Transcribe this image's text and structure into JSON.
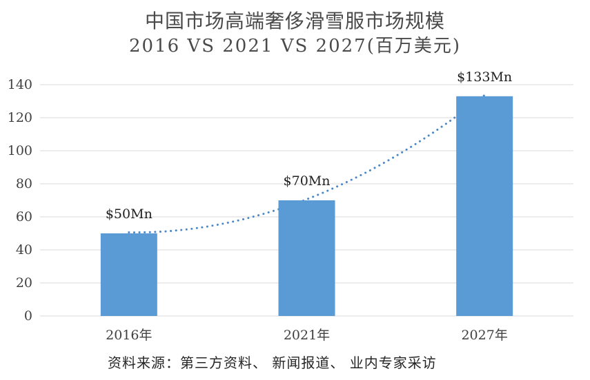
{
  "title": {
    "line1": "中国市场高端奢侈滑雪服市场规模",
    "line2": "2016 VS 2021 VS 2027(百万美元)"
  },
  "source_note": "资料来源：第三方资料、 新闻报道、 业内专家采访",
  "chart_data": {
    "type": "bar",
    "title": "中国市场高端奢侈滑雪服市场规模 2016 VS 2021 VS 2027(百万美元)",
    "categories": [
      "2016年",
      "2021年",
      "2027年"
    ],
    "values": [
      50,
      70,
      133
    ],
    "data_labels": [
      "$50Mn",
      "$70Mn",
      "$133Mn"
    ],
    "xlabel": "",
    "ylabel": "",
    "ylim": [
      0,
      140
    ],
    "ytick_step": 20,
    "ytick_labels": [
      "0",
      "20",
      "40",
      "60",
      "80",
      "100",
      "120",
      "140"
    ],
    "grid": true,
    "legend": false,
    "trend_line": {
      "style": "dotted",
      "through": "bar-top-centers",
      "shape": "accelerating-curve"
    },
    "colors": {
      "bar": "#5B9BD5",
      "trend": "#4A87C7",
      "gridline": "#D9D9D9",
      "title_text": "#4A4A4A",
      "axis_text": "#404040",
      "label_text": "#1F1F1F",
      "source_text": "#262626"
    }
  }
}
